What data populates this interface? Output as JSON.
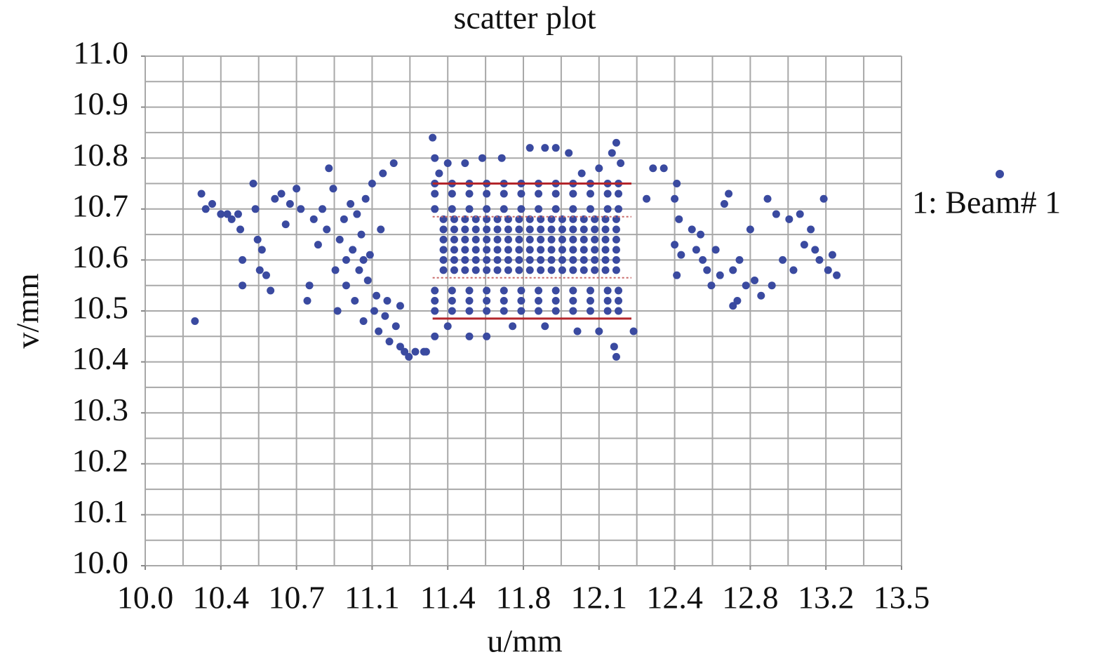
{
  "chart_data": {
    "type": "scatter",
    "title": "scatter plot",
    "x_label": "u/mm",
    "y_label": "v/mm",
    "xlim": [
      10.0,
      13.5
    ],
    "ylim": [
      10.0,
      11.0
    ],
    "xticks": [
      {
        "value": 10.0,
        "label": "10.0"
      },
      {
        "value": 10.35,
        "label": "10.4"
      },
      {
        "value": 10.7,
        "label": "10.7"
      },
      {
        "value": 11.05,
        "label": "11.1"
      },
      {
        "value": 11.4,
        "label": "11.4"
      },
      {
        "value": 11.75,
        "label": "11.8"
      },
      {
        "value": 12.1,
        "label": "12.1"
      },
      {
        "value": 12.45,
        "label": "12.4"
      },
      {
        "value": 12.8,
        "label": "12.8"
      },
      {
        "value": 13.15,
        "label": "13.2"
      },
      {
        "value": 13.5,
        "label": "13.5"
      }
    ],
    "yticks": [
      {
        "value": 10.0,
        "label": "10.0"
      },
      {
        "value": 10.1,
        "label": "10.1"
      },
      {
        "value": 10.2,
        "label": "10.2"
      },
      {
        "value": 10.3,
        "label": "10.3"
      },
      {
        "value": 10.4,
        "label": "10.4"
      },
      {
        "value": 10.5,
        "label": "10.5"
      },
      {
        "value": 10.6,
        "label": "10.6"
      },
      {
        "value": 10.7,
        "label": "10.7"
      },
      {
        "value": 10.8,
        "label": "10.8"
      },
      {
        "value": 10.9,
        "label": "10.9"
      },
      {
        "value": 11.0,
        "label": "11.0"
      }
    ],
    "xgrid": [
      10.0,
      10.175,
      10.35,
      10.525,
      10.7,
      10.875,
      11.05,
      11.225,
      11.4,
      11.575,
      11.75,
      11.925,
      12.1,
      12.275,
      12.45,
      12.625,
      12.8,
      12.975,
      13.15,
      13.325,
      13.5
    ],
    "ygrid": [
      10.0,
      10.05,
      10.1,
      10.15,
      10.2,
      10.25,
      10.3,
      10.35,
      10.4,
      10.45,
      10.5,
      10.55,
      10.6,
      10.65,
      10.7,
      10.75,
      10.8,
      10.85,
      10.9,
      10.95,
      11.0
    ],
    "grid": true,
    "hlines": [
      {
        "y": 10.75,
        "x": [
          11.33,
          12.25
        ],
        "color": "#b3262b",
        "dashed": false
      },
      {
        "y": 10.485,
        "x": [
          11.33,
          12.25
        ],
        "color": "#b3262b",
        "dashed": false
      },
      {
        "y": 10.685,
        "x": [
          11.33,
          12.25
        ],
        "color": "#c96a6a",
        "dashed": true
      },
      {
        "y": 10.565,
        "x": [
          11.33,
          12.25
        ],
        "color": "#c96a6a",
        "dashed": true
      }
    ],
    "series": [
      {
        "name": "1: Beam# 1",
        "color": "#3a4aa0",
        "x": [
          10.26,
          10.28,
          10.31,
          10.35,
          10.38,
          10.4,
          10.43,
          10.44,
          10.45,
          10.45,
          10.5,
          10.51,
          10.52,
          10.54,
          10.53,
          10.56,
          10.58,
          10.6,
          10.63,
          10.65,
          10.67,
          10.7,
          10.72,
          10.75,
          10.76,
          10.78,
          10.8,
          10.82,
          10.84,
          10.85,
          10.87,
          10.88,
          10.89,
          10.9,
          10.92,
          10.93,
          10.95,
          10.96,
          10.97,
          10.98,
          10.99,
          11.0,
          11.01,
          11.02,
          11.03,
          11.04,
          11.05,
          11.06,
          11.07,
          11.08,
          11.1,
          11.11,
          11.13,
          11.15,
          11.16,
          11.18,
          11.2,
          11.22,
          10.23,
          11.25,
          11.29,
          11.09,
          11.01,
          10.93,
          11.12,
          11.18,
          11.34,
          11.42,
          11.5,
          11.58,
          11.66,
          11.74,
          11.82,
          11.9,
          11.98,
          12.06,
          12.14,
          12.19,
          11.34,
          11.42,
          11.5,
          11.58,
          11.66,
          11.74,
          11.82,
          11.9,
          11.98,
          12.06,
          12.14,
          12.19,
          11.34,
          11.42,
          11.5,
          11.58,
          11.66,
          11.74,
          11.82,
          11.9,
          11.98,
          12.06,
          12.14,
          12.19,
          11.34,
          11.42,
          11.5,
          11.58,
          11.66,
          11.74,
          11.82,
          11.9,
          11.98,
          12.06,
          12.14,
          12.19,
          11.34,
          11.42,
          11.5,
          11.58,
          11.66,
          11.74,
          11.82,
          11.9,
          11.98,
          12.06,
          12.14,
          12.19,
          11.34,
          11.42,
          11.5,
          11.58,
          11.66,
          11.74,
          11.82,
          11.9,
          11.98,
          12.06,
          12.14,
          12.19,
          11.38,
          11.43,
          11.48,
          11.53,
          11.58,
          11.63,
          11.68,
          11.73,
          11.78,
          11.83,
          11.88,
          11.93,
          11.98,
          12.03,
          12.08,
          12.13,
          12.18,
          11.38,
          11.43,
          11.48,
          11.53,
          11.58,
          11.63,
          11.68,
          11.73,
          11.78,
          11.83,
          11.88,
          11.93,
          11.98,
          12.03,
          12.08,
          12.13,
          12.18,
          11.38,
          11.43,
          11.48,
          11.53,
          11.58,
          11.63,
          11.68,
          11.73,
          11.78,
          11.83,
          11.88,
          11.93,
          11.98,
          12.03,
          12.08,
          12.13,
          12.18,
          11.38,
          11.43,
          11.48,
          11.53,
          11.58,
          11.63,
          11.68,
          11.73,
          11.78,
          11.83,
          11.88,
          11.93,
          11.98,
          12.03,
          12.08,
          12.13,
          12.18,
          11.38,
          11.43,
          11.48,
          11.53,
          11.58,
          11.63,
          11.68,
          11.73,
          11.78,
          11.83,
          11.88,
          11.93,
          11.98,
          12.03,
          12.08,
          12.13,
          12.18,
          11.38,
          11.43,
          11.48,
          11.53,
          11.58,
          11.63,
          11.68,
          11.73,
          11.78,
          11.83,
          11.88,
          11.93,
          11.98,
          12.03,
          12.08,
          12.13,
          12.18,
          11.34,
          11.36,
          11.4,
          11.48,
          11.56,
          11.65,
          11.78,
          11.85,
          11.9,
          11.96,
          12.02,
          12.1,
          12.16,
          12.18,
          11.33,
          12.2,
          11.34,
          11.4,
          11.5,
          11.58,
          11.7,
          11.85,
          12.0,
          12.1,
          12.17,
          12.18,
          11.3,
          12.26,
          12.35,
          12.4,
          12.32,
          12.45,
          12.46,
          12.47,
          12.45,
          12.48,
          12.53,
          12.55,
          12.57,
          12.58,
          12.6,
          12.62,
          12.64,
          12.66,
          12.68,
          12.7,
          12.72,
          12.74,
          12.75,
          12.78,
          12.8,
          12.82,
          12.85,
          12.88,
          12.9,
          12.92,
          12.95,
          12.98,
          13.0,
          13.03,
          13.05,
          13.08,
          13.1,
          13.12,
          13.14,
          13.16,
          13.18,
          13.2,
          12.46,
          12.72
        ],
        "y": [
          10.73,
          10.7,
          10.71,
          10.69,
          10.69,
          10.68,
          10.69,
          10.66,
          10.6,
          10.55,
          10.75,
          10.7,
          10.64,
          10.62,
          10.58,
          10.57,
          10.54,
          10.72,
          10.73,
          10.67,
          10.71,
          10.74,
          10.7,
          10.52,
          10.55,
          10.68,
          10.63,
          10.7,
          10.66,
          10.78,
          10.74,
          10.58,
          10.5,
          10.64,
          10.68,
          10.55,
          10.71,
          10.62,
          10.52,
          10.69,
          10.58,
          10.65,
          10.48,
          10.72,
          10.56,
          10.61,
          10.75,
          10.5,
          10.53,
          10.46,
          10.77,
          10.49,
          10.44,
          10.79,
          10.47,
          10.43,
          10.42,
          10.41,
          10.48,
          10.42,
          10.42,
          10.66,
          10.6,
          10.6,
          10.52,
          10.51,
          10.5,
          10.5,
          10.5,
          10.5,
          10.5,
          10.5,
          10.5,
          10.5,
          10.5,
          10.5,
          10.5,
          10.5,
          10.52,
          10.52,
          10.52,
          10.52,
          10.52,
          10.52,
          10.52,
          10.52,
          10.52,
          10.52,
          10.52,
          10.52,
          10.54,
          10.54,
          10.54,
          10.54,
          10.54,
          10.54,
          10.54,
          10.54,
          10.54,
          10.54,
          10.54,
          10.54,
          10.7,
          10.7,
          10.7,
          10.7,
          10.7,
          10.7,
          10.7,
          10.7,
          10.7,
          10.7,
          10.7,
          10.7,
          10.73,
          10.73,
          10.73,
          10.73,
          10.73,
          10.73,
          10.73,
          10.73,
          10.73,
          10.73,
          10.73,
          10.73,
          10.75,
          10.75,
          10.75,
          10.75,
          10.75,
          10.75,
          10.75,
          10.75,
          10.75,
          10.75,
          10.75,
          10.75,
          10.58,
          10.58,
          10.58,
          10.58,
          10.58,
          10.58,
          10.58,
          10.58,
          10.58,
          10.58,
          10.58,
          10.58,
          10.58,
          10.58,
          10.58,
          10.58,
          10.58,
          10.6,
          10.6,
          10.6,
          10.6,
          10.6,
          10.6,
          10.6,
          10.6,
          10.6,
          10.6,
          10.6,
          10.6,
          10.6,
          10.6,
          10.6,
          10.6,
          10.6,
          10.62,
          10.62,
          10.62,
          10.62,
          10.62,
          10.62,
          10.62,
          10.62,
          10.62,
          10.62,
          10.62,
          10.62,
          10.62,
          10.62,
          10.62,
          10.62,
          10.62,
          10.64,
          10.64,
          10.64,
          10.64,
          10.64,
          10.64,
          10.64,
          10.64,
          10.64,
          10.64,
          10.64,
          10.64,
          10.64,
          10.64,
          10.64,
          10.64,
          10.64,
          10.66,
          10.66,
          10.66,
          10.66,
          10.66,
          10.66,
          10.66,
          10.66,
          10.66,
          10.66,
          10.66,
          10.66,
          10.66,
          10.66,
          10.66,
          10.66,
          10.66,
          10.68,
          10.68,
          10.68,
          10.68,
          10.68,
          10.68,
          10.68,
          10.68,
          10.68,
          10.68,
          10.68,
          10.68,
          10.68,
          10.68,
          10.68,
          10.68,
          10.68,
          10.8,
          10.77,
          10.79,
          10.79,
          10.8,
          10.8,
          10.82,
          10.82,
          10.82,
          10.81,
          10.77,
          10.78,
          10.81,
          10.83,
          10.84,
          10.79,
          10.45,
          10.47,
          10.45,
          10.45,
          10.47,
          10.47,
          10.46,
          10.46,
          10.43,
          10.41,
          10.42,
          10.46,
          10.78,
          10.78,
          10.72,
          10.72,
          10.75,
          10.68,
          10.63,
          10.61,
          10.66,
          10.62,
          10.65,
          10.6,
          10.58,
          10.55,
          10.62,
          10.57,
          10.71,
          10.73,
          10.58,
          10.52,
          10.6,
          10.55,
          10.66,
          10.56,
          10.53,
          10.72,
          10.55,
          10.69,
          10.6,
          10.68,
          10.58,
          10.69,
          10.63,
          10.66,
          10.62,
          10.6,
          10.72,
          10.58,
          10.61,
          10.57,
          10.57,
          10.51
        ]
      }
    ]
  }
}
